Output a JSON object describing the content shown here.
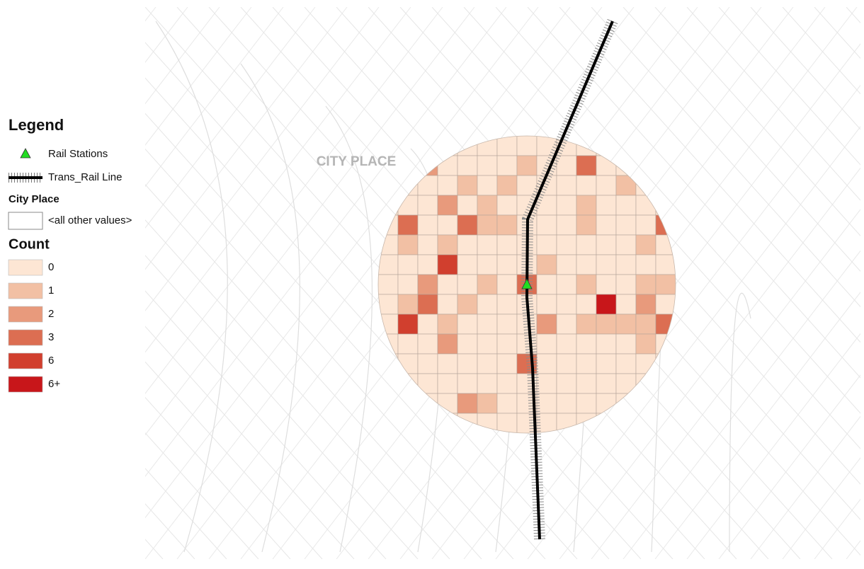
{
  "legend": {
    "title": "Legend",
    "items": [
      {
        "label": "Rail Stations",
        "color": "#22dd22"
      },
      {
        "label": "Trans_Rail Line",
        "color": "#000000"
      }
    ],
    "city_place": {
      "title": "City Place",
      "items": [
        "<all other values>"
      ]
    },
    "count": {
      "title": "Count",
      "classes": [
        {
          "label": "0",
          "color": "#fde6d4"
        },
        {
          "label": "1",
          "color": "#f2c0a4"
        },
        {
          "label": "2",
          "color": "#e89a7c"
        },
        {
          "label": "3",
          "color": "#dc6e52"
        },
        {
          "label": "6",
          "color": "#d13f2e"
        },
        {
          "label": "6+",
          "color": "#c8161a"
        }
      ]
    }
  },
  "map_label": "CITY PLACE",
  "grid": [
    [
      0,
      0,
      0,
      0,
      0,
      0,
      0,
      0,
      0,
      0,
      0,
      0,
      0,
      0,
      0
    ],
    [
      0,
      0,
      2,
      0,
      0,
      0,
      0,
      1,
      0,
      0,
      3,
      0,
      0,
      0,
      0
    ],
    [
      0,
      0,
      0,
      0,
      1,
      0,
      1,
      0,
      0,
      0,
      0,
      0,
      1,
      0,
      0
    ],
    [
      0,
      0,
      0,
      2,
      0,
      1,
      0,
      0,
      0,
      0,
      1,
      0,
      0,
      0,
      0
    ],
    [
      0,
      3,
      0,
      0,
      3,
      1,
      1,
      0,
      0,
      0,
      1,
      0,
      0,
      0,
      3
    ],
    [
      0,
      1,
      0,
      1,
      0,
      0,
      0,
      0,
      0,
      0,
      0,
      0,
      0,
      1,
      0
    ],
    [
      0,
      0,
      0,
      4,
      0,
      0,
      0,
      0,
      1,
      0,
      0,
      0,
      0,
      0,
      0
    ],
    [
      0,
      0,
      2,
      0,
      0,
      1,
      0,
      3,
      0,
      0,
      1,
      0,
      0,
      1,
      1
    ],
    [
      0,
      1,
      3,
      0,
      1,
      0,
      0,
      0,
      0,
      0,
      0,
      5,
      0,
      2,
      0
    ],
    [
      0,
      4,
      0,
      1,
      0,
      0,
      0,
      0,
      2,
      0,
      1,
      1,
      1,
      1,
      3
    ],
    [
      0,
      0,
      0,
      2,
      0,
      0,
      0,
      0,
      0,
      0,
      0,
      0,
      0,
      1,
      0
    ],
    [
      0,
      0,
      0,
      0,
      0,
      0,
      0,
      3,
      0,
      0,
      0,
      0,
      0,
      0,
      0
    ],
    [
      0,
      0,
      0,
      0,
      0,
      0,
      0,
      0,
      0,
      0,
      0,
      0,
      0,
      0,
      0
    ],
    [
      0,
      0,
      0,
      0,
      2,
      1,
      0,
      0,
      0,
      0,
      0,
      0,
      0,
      0,
      0
    ],
    [
      0,
      0,
      0,
      0,
      0,
      0,
      0,
      0,
      0,
      0,
      0,
      0,
      0,
      0,
      0
    ]
  ]
}
